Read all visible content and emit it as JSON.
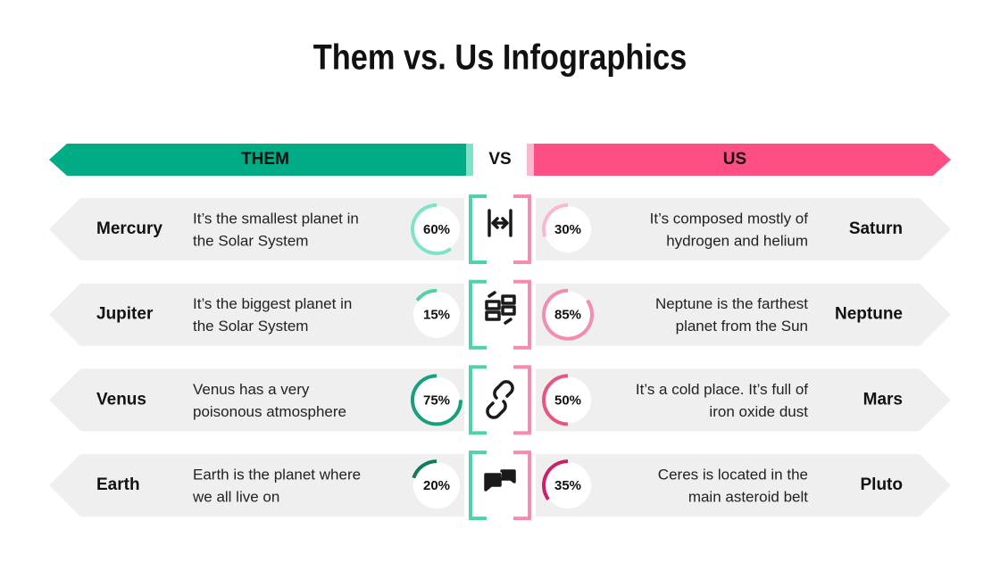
{
  "title": "Them vs. Us Infographics",
  "header": {
    "them": "THEM",
    "vs": "VS",
    "us": "US"
  },
  "rows": [
    {
      "left": {
        "name": "Mercury",
        "text": [
          "It’s the smallest planet in",
          "the Solar System"
        ],
        "percent": {
          "value": 60,
          "label": "60%"
        },
        "color": "#7fe3c9"
      },
      "right": {
        "name": "Saturn",
        "text": [
          "It’s composed mostly of",
          "hydrogen and helium"
        ],
        "percent": {
          "value": 30,
          "label": "30%"
        },
        "color": "#f9b8d0"
      }
    },
    {
      "left": {
        "name": "Jupiter",
        "text": [
          "It’s the biggest planet in",
          "the Solar System"
        ],
        "percent": {
          "value": 15,
          "label": "15%"
        },
        "color": "#4fd1ac"
      },
      "right": {
        "name": "Neptune",
        "text": [
          "Neptune is the farthest",
          "planet from the Sun"
        ],
        "percent": {
          "value": 85,
          "label": "85%"
        },
        "color": "#f48bb1"
      }
    },
    {
      "left": {
        "name": "Venus",
        "text": [
          "Venus has a very",
          "poisonous atmosphere"
        ],
        "percent": {
          "value": 75,
          "label": "75%"
        },
        "color": "#16a07e"
      },
      "right": {
        "name": "Mars",
        "text": [
          "It’s a cold place. It’s full of",
          "iron oxide dust"
        ],
        "percent": {
          "value": 50,
          "label": "50%"
        },
        "color": "#e9557f"
      }
    },
    {
      "left": {
        "name": "Earth",
        "text": [
          "Earth is the planet where",
          "we all live on"
        ],
        "percent": {
          "value": 20,
          "label": "20%"
        },
        "color": "#0f7a5c"
      },
      "right": {
        "name": "Pluto",
        "text": [
          "Ceres is located in the",
          "main asteroid belt"
        ],
        "percent": {
          "value": 35,
          "label": "35%"
        },
        "color": "#d01f6a"
      }
    }
  ]
}
